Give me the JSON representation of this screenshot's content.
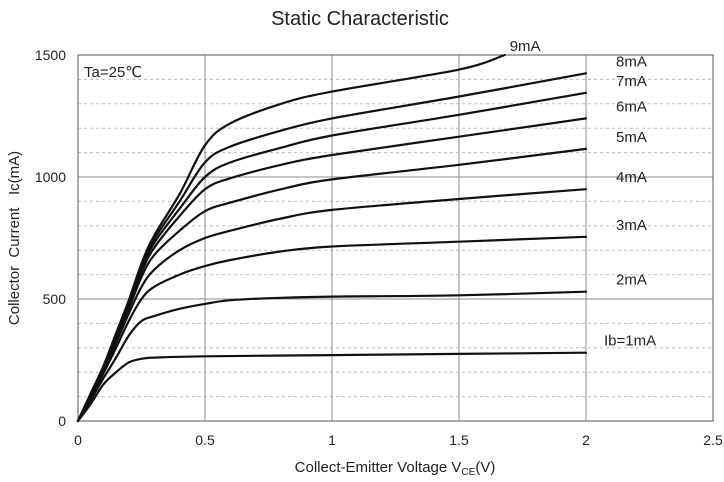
{
  "chart_data": {
    "type": "line",
    "title": "Static Characteristic",
    "annotation": "Ta=25℃",
    "xlabel": "Collect-Emitter Voltage",
    "xlabel_symbol": "V",
    "xlabel_subscript": "CE",
    "xlabel_unit": "(V)",
    "ylabel": "Collector  Current   Ic(mA)",
    "xlim": [
      0,
      2.5
    ],
    "ylim": [
      0,
      1500
    ],
    "x_ticks": [
      "0",
      "0.5",
      "1",
      "1.5",
      "2",
      "2.5"
    ],
    "y_ticks": [
      "0",
      "500",
      "1000",
      "1500"
    ],
    "grid": true,
    "legend": "curve-labels-right",
    "series": [
      {
        "name": "Ib=1mA",
        "x": [
          0,
          0.05,
          0.1,
          0.15,
          0.2,
          0.25,
          0.3,
          0.5,
          1.0,
          1.5,
          2.0
        ],
        "y": [
          0,
          70,
          150,
          200,
          240,
          255,
          260,
          265,
          270,
          275,
          280
        ]
      },
      {
        "name": "2mA",
        "x": [
          0,
          0.05,
          0.1,
          0.15,
          0.2,
          0.25,
          0.3,
          0.4,
          0.5,
          0.6,
          0.8,
          1.0,
          1.5,
          2.0
        ],
        "y": [
          0,
          85,
          175,
          260,
          350,
          410,
          430,
          460,
          480,
          495,
          505,
          510,
          515,
          530
        ]
      },
      {
        "name": "3mA",
        "x": [
          0,
          0.05,
          0.1,
          0.15,
          0.2,
          0.25,
          0.3,
          0.4,
          0.5,
          0.6,
          0.8,
          1.0,
          1.5,
          2.0
        ],
        "y": [
          0,
          95,
          195,
          300,
          410,
          500,
          550,
          600,
          635,
          660,
          695,
          715,
          735,
          755
        ]
      },
      {
        "name": "4mA",
        "x": [
          0,
          0.05,
          0.1,
          0.15,
          0.2,
          0.25,
          0.3,
          0.4,
          0.5,
          0.6,
          0.8,
          1.0,
          1.5,
          2.0
        ],
        "y": [
          0,
          100,
          205,
          320,
          440,
          550,
          620,
          700,
          750,
          780,
          830,
          865,
          910,
          950
        ]
      },
      {
        "name": "5mA",
        "x": [
          0,
          0.05,
          0.1,
          0.15,
          0.2,
          0.25,
          0.3,
          0.4,
          0.5,
          0.6,
          0.8,
          1.0,
          1.5,
          2.0
        ],
        "y": [
          0,
          105,
          210,
          335,
          460,
          590,
          680,
          780,
          860,
          895,
          950,
          990,
          1050,
          1115
        ]
      },
      {
        "name": "6mA",
        "x": [
          0,
          0.05,
          0.1,
          0.15,
          0.2,
          0.25,
          0.3,
          0.4,
          0.5,
          0.6,
          0.8,
          1.0,
          1.5,
          2.0
        ],
        "y": [
          0,
          108,
          215,
          345,
          475,
          610,
          710,
          840,
          950,
          995,
          1050,
          1090,
          1165,
          1240
        ]
      },
      {
        "name": "7mA",
        "x": [
          0,
          0.05,
          0.1,
          0.15,
          0.2,
          0.25,
          0.3,
          0.4,
          0.5,
          0.6,
          0.8,
          1.0,
          1.5,
          2.0
        ],
        "y": [
          0,
          110,
          220,
          350,
          485,
          625,
          730,
          870,
          1000,
          1060,
          1120,
          1170,
          1255,
          1345
        ]
      },
      {
        "name": "8mA",
        "x": [
          0,
          0.05,
          0.1,
          0.15,
          0.2,
          0.25,
          0.3,
          0.4,
          0.5,
          0.6,
          0.8,
          1.0,
          1.5,
          2.0
        ],
        "y": [
          0,
          112,
          222,
          355,
          490,
          635,
          745,
          900,
          1060,
          1125,
          1190,
          1240,
          1330,
          1425
        ]
      },
      {
        "name": "9mA",
        "x": [
          0,
          0.05,
          0.1,
          0.15,
          0.2,
          0.25,
          0.3,
          0.4,
          0.5,
          0.6,
          0.8,
          1.0,
          1.5,
          1.68
        ],
        "y": [
          0,
          113,
          225,
          360,
          495,
          645,
          760,
          930,
          1130,
          1220,
          1300,
          1350,
          1440,
          1500
        ]
      }
    ]
  }
}
